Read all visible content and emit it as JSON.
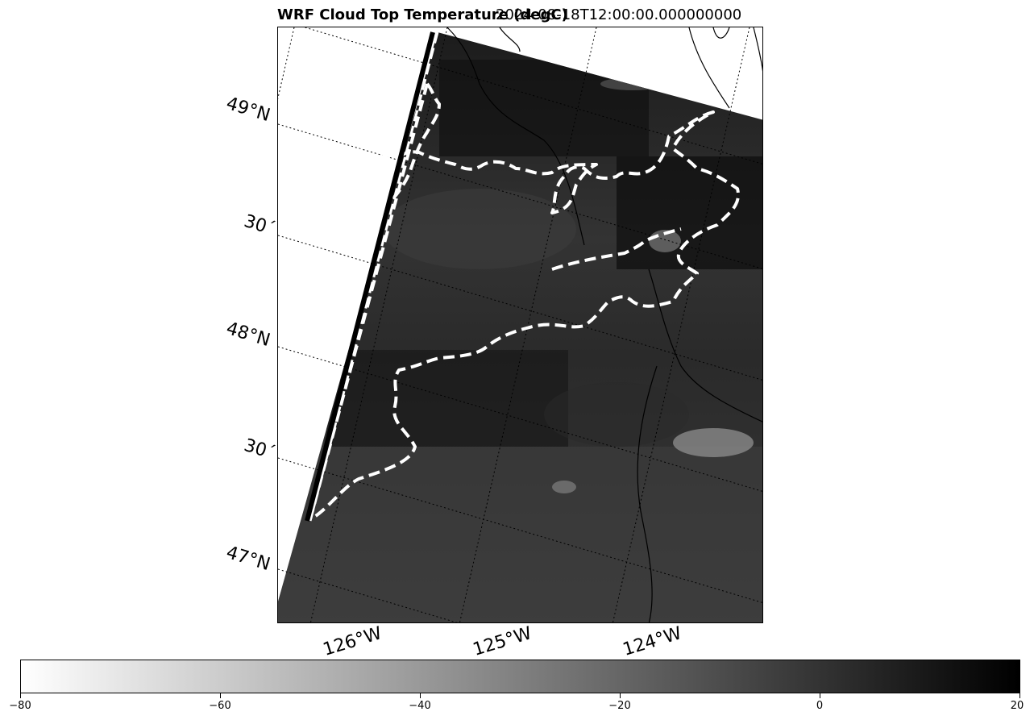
{
  "title": {
    "left": "WRF Cloud Top Temperature (degC)",
    "right": "2024-08-18T12:00:00.000000000"
  },
  "map": {
    "lat_labels": [
      "49°N",
      "30´",
      "48°N",
      "30´",
      "47°N"
    ],
    "lon_labels": [
      "126°W",
      "125°W",
      "124°W"
    ],
    "contour_style": "white dashed",
    "gridline_style": "black dotted",
    "colormap": "gray_r"
  },
  "colorbar": {
    "min": -80,
    "max": 20,
    "ticks": [
      "−80",
      "−60",
      "−40",
      "−20",
      "0",
      "20"
    ],
    "color_low": "#ffffff",
    "color_high": "#000000"
  }
}
